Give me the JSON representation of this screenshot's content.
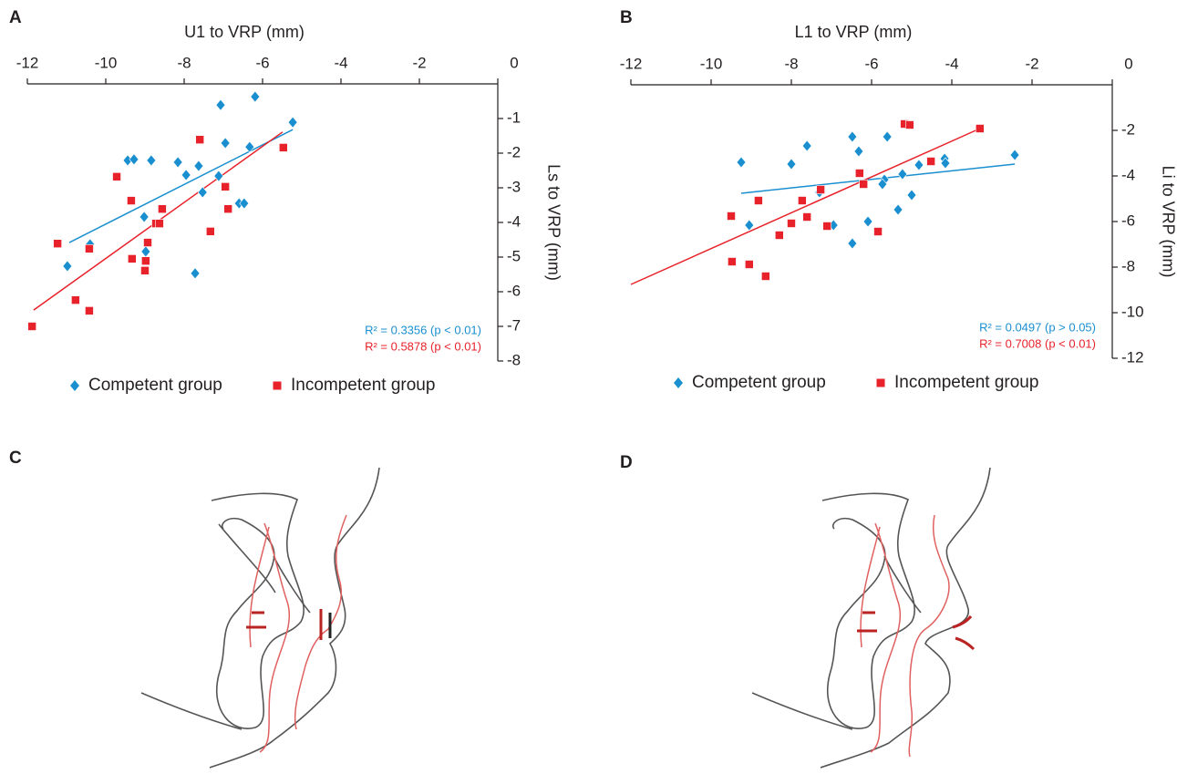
{
  "chart_data": [
    {
      "type": "scatter",
      "panel": "A",
      "xlabel": "U1 to VRP (mm)",
      "ylabel": "Ls to VRP (mm)",
      "xlim": [
        -12,
        0
      ],
      "xticks": [
        -12,
        -10,
        -8,
        -6,
        -4,
        -2,
        0
      ],
      "ylim": [
        -8,
        0
      ],
      "yticks": [
        -1,
        -2,
        -3,
        -4,
        -5,
        -6,
        -7,
        -8
      ],
      "legend": "bottom",
      "series": [
        {
          "name": "Competent group",
          "color": "#1a8fd0",
          "marker": "diamond",
          "x": [
            -10.98,
            -10.4,
            -8.98,
            -9.02,
            -9.44,
            -9.28,
            -8.84,
            -8.16,
            -7.95,
            -7.63,
            -7.53,
            -7.72,
            -7.12,
            -7.07,
            -6.95,
            -6.6,
            -6.47,
            -6.33,
            -6.19,
            -5.23
          ],
          "values": [
            -5.26,
            -4.63,
            -4.84,
            -3.84,
            -2.21,
            -2.18,
            -2.21,
            -2.26,
            -2.63,
            -2.37,
            -3.13,
            -5.47,
            -2.66,
            -0.61,
            -1.71,
            -3.45,
            -3.45,
            -1.82,
            -0.37,
            -1.11
          ],
          "trend": {
            "x": [
              -10.93,
              -5.23
            ],
            "y": [
              -4.58,
              -1.32
            ]
          }
        },
        {
          "name": "Incompetent group",
          "color": "#e8222a",
          "marker": "square",
          "x": [
            -11.88,
            -11.23,
            -10.77,
            -10.42,
            -10.42,
            -9.72,
            -9.35,
            -9.33,
            -8.98,
            -9.0,
            -8.93,
            -8.72,
            -8.63,
            -8.56,
            -7.6,
            -6.95,
            -6.88,
            -7.33,
            -5.47
          ],
          "values": [
            -7.0,
            -4.61,
            -6.24,
            -4.76,
            -6.55,
            -2.68,
            -3.37,
            -5.05,
            -5.11,
            -5.39,
            -4.58,
            -4.03,
            -4.03,
            -3.61,
            -1.61,
            -2.97,
            -3.61,
            -4.26,
            -1.84
          ],
          "trend": {
            "x": [
              -11.84,
              -5.49
            ],
            "y": [
              -6.53,
              -1.39
            ]
          }
        }
      ],
      "annotations": [
        {
          "text": "R² = 0.3356 (p < 0.01)",
          "color": "#1a8fd0"
        },
        {
          "text": "R² = 0.5878 (p < 0.01)",
          "color": "#e8222a"
        }
      ]
    },
    {
      "type": "scatter",
      "panel": "B",
      "xlabel": "L1 to VRP (mm)",
      "ylabel": "Li to VRP (mm)",
      "xlim": [
        -12,
        0
      ],
      "xticks": [
        -12,
        -10,
        -8,
        -6,
        -4,
        -2,
        0
      ],
      "ylim": [
        -12,
        0
      ],
      "yticks": [
        -2,
        -4,
        -6,
        -8,
        -10,
        -12
      ],
      "legend": "bottom",
      "series": [
        {
          "name": "Competent group",
          "color": "#1a8fd0",
          "marker": "diamond",
          "x": [
            -9.25,
            -9.05,
            -7.61,
            -8.0,
            -7.3,
            -6.95,
            -6.48,
            -6.32,
            -6.09,
            -6.48,
            -5.68,
            -5.73,
            -5.61,
            -5.34,
            -5.23,
            -5.0,
            -4.82,
            -4.18,
            -4.16,
            -2.43
          ],
          "values": [
            -3.4,
            -6.16,
            -2.68,
            -3.48,
            -4.72,
            -6.16,
            -2.28,
            -2.92,
            -6.0,
            -6.96,
            -4.16,
            -4.36,
            -2.28,
            -5.48,
            -3.92,
            -4.84,
            -3.52,
            -3.24,
            -3.44,
            -3.08
          ],
          "trend": {
            "x": [
              -9.25,
              -2.43
            ],
            "y": [
              -4.76,
              -3.48
            ]
          }
        },
        {
          "name": "Incompetent group",
          "color": "#e8222a",
          "marker": "square",
          "x": [
            -9.5,
            -9.48,
            -9.05,
            -8.82,
            -8.64,
            -8.3,
            -8.0,
            -7.73,
            -7.61,
            -7.27,
            -7.11,
            -6.3,
            -6.2,
            -5.84,
            -5.18,
            -5.05,
            -4.52,
            -3.3
          ],
          "values": [
            -5.76,
            -7.76,
            -7.88,
            -5.08,
            -8.4,
            -6.6,
            -6.08,
            -5.08,
            -5.8,
            -4.6,
            -6.2,
            -3.88,
            -4.36,
            -6.44,
            -1.72,
            -1.76,
            -3.36,
            -1.92
          ],
          "trend": {
            "x": [
              -12,
              -3.3
            ],
            "y": [
              -8.76,
              -1.92
            ]
          }
        }
      ],
      "annotations": [
        {
          "text": "R² = 0.0497 (p > 0.05)",
          "color": "#1a8fd0"
        },
        {
          "text": "R² = 0.7008 (p < 0.01)",
          "color": "#e8222a"
        }
      ]
    }
  ],
  "diagrams": [
    {
      "label": "C"
    },
    {
      "label": "D"
    }
  ]
}
